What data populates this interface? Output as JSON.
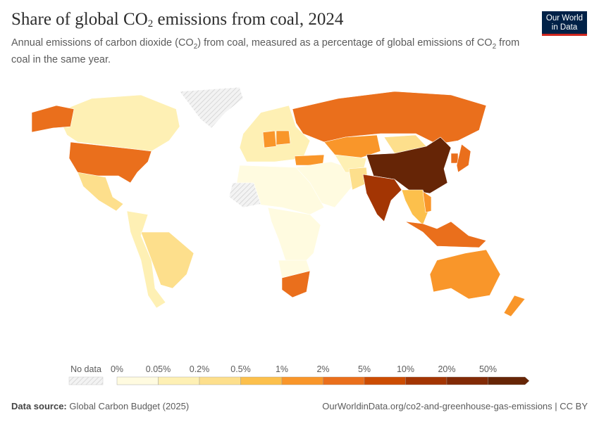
{
  "header": {
    "title_prefix": "Share of global CO",
    "title_sub": "2",
    "title_suffix": " emissions from coal, 2024",
    "subtitle_a": "Annual emissions of carbon dioxide (CO",
    "subtitle_sub1": "2",
    "subtitle_b": ") from coal, measured as a percentage of global emissions of CO",
    "subtitle_sub2": "2",
    "subtitle_c": " from coal in the same year.",
    "logo_line1": "Our World",
    "logo_line2": "in Data"
  },
  "legend": {
    "no_data_label": "No data",
    "ticks": [
      "0%",
      "0.05%",
      "0.2%",
      "0.5%",
      "1%",
      "2%",
      "5%",
      "10%",
      "20%",
      "50%"
    ],
    "colors": [
      "#fffbe0",
      "#fef0b4",
      "#fddf8c",
      "#fcc04c",
      "#f9962a",
      "#ea6f1c",
      "#cc4c02",
      "#a33503",
      "#822a06",
      "#662506"
    ],
    "no_data_color": "#e8e8e8"
  },
  "map": {
    "regions": [
      {
        "id": "china",
        "share": 55
      },
      {
        "id": "india",
        "share": 13
      },
      {
        "id": "usa",
        "share": 4.5
      },
      {
        "id": "russia",
        "share": 3.5
      },
      {
        "id": "japan",
        "share": 3.5
      },
      {
        "id": "south-korea",
        "share": 3
      },
      {
        "id": "indonesia",
        "share": 4
      },
      {
        "id": "south-africa",
        "share": 3
      },
      {
        "id": "australia",
        "share": 1.2
      },
      {
        "id": "kazakhstan",
        "share": 1.5
      },
      {
        "id": "turkey",
        "share": 1.2
      },
      {
        "id": "germany",
        "share": 1.3
      },
      {
        "id": "poland",
        "share": 1.4
      },
      {
        "id": "vietnam",
        "share": 1.8
      },
      {
        "id": "canada",
        "share": 0.15
      },
      {
        "id": "mexico",
        "share": 0.3
      },
      {
        "id": "brazil",
        "share": 0.4
      },
      {
        "id": "europe-other",
        "share": 0.15
      },
      {
        "id": "africa-north",
        "share": 0.02
      },
      {
        "id": "africa-central",
        "share": 0.01
      },
      {
        "id": "south-america-other",
        "share": 0.05
      },
      {
        "id": "middle-east",
        "share": 0.02
      },
      {
        "id": "central-asia",
        "share": 0.1
      },
      {
        "id": "southeast-asia",
        "share": 0.6
      },
      {
        "id": "mongolia",
        "share": 0.2
      },
      {
        "id": "pakistan",
        "share": 0.4
      },
      {
        "id": "greenland",
        "share": null
      },
      {
        "id": "sahara-nodata",
        "share": null
      }
    ]
  },
  "footer": {
    "source_label": "Data source:",
    "source_value": " Global Carbon Budget (2025)",
    "url": "OurWorldinData.org/co2-and-greenhouse-gas-emissions | CC BY"
  }
}
